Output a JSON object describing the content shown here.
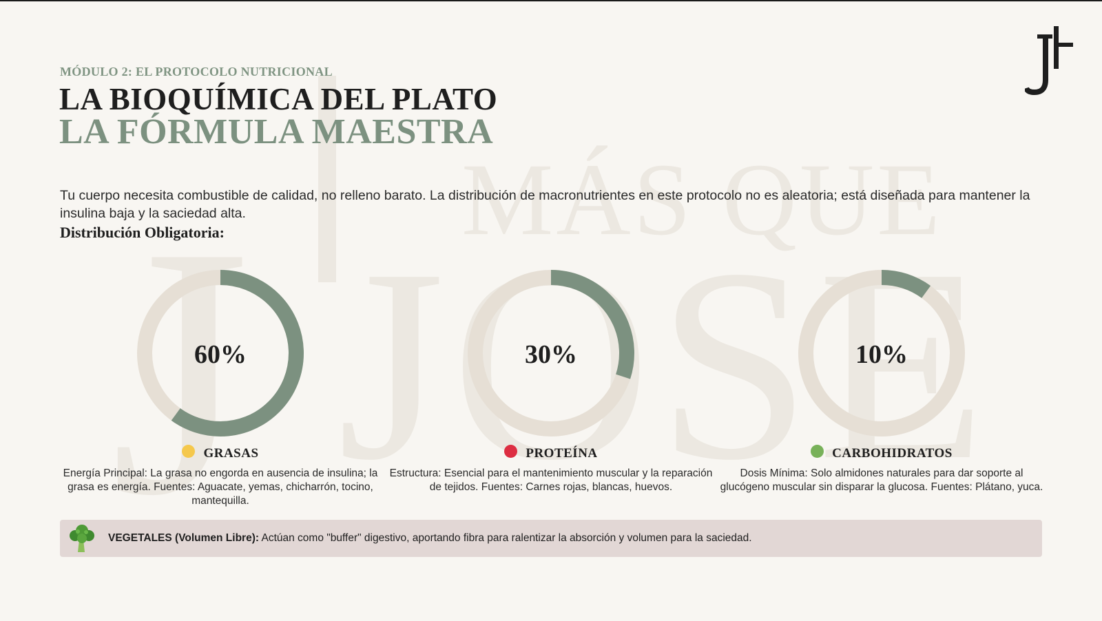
{
  "header": {
    "module": "MÓDULO 2: EL PROTOCOLO NUTRICIONAL",
    "title_line1": "LA BIOQUÍMICA DEL PLATO",
    "title_line2": "LA FÓRMULA MAESTRA"
  },
  "intro": "Tu cuerpo necesita combustible de calidad, no relleno barato. La distribución de macronutrientes en este protocolo no es aleatoria; está diseñada para mantener la insulina baja y la saciedad alta.",
  "distribution_label": "Distribución Obligatoria:",
  "macros": [
    {
      "name": "GRASAS",
      "percent_label": "60%",
      "fraction": 0.6,
      "dot_color": "#f5c84c",
      "description": "Energía Principal: La grasa no engorda en ausencia de insulina; la grasa es energía. Fuentes: Aguacate, yemas, chicharrón, tocino, mantequilla."
    },
    {
      "name": "PROTEÍNA",
      "percent_label": "30%",
      "fraction": 0.3,
      "dot_color": "#dd2e42",
      "description": "Estructura: Esencial para el mantenimiento muscular y la reparación de tejidos. Fuentes: Carnes rojas, blancas, huevos."
    },
    {
      "name": "CARBOHIDRATOS",
      "percent_label": "10%",
      "fraction": 0.1,
      "dot_color": "#78b159",
      "description": "Dosis Mínima: Solo almidones naturales para dar soporte al glucógeno muscular sin disparar la glucosa. Fuentes: Plátano, yuca."
    }
  ],
  "vegetables": {
    "icon": "broccoli-icon",
    "label": "VEGETALES (Volumen Libre):",
    "text": "Actúan como \"buffer\" digestivo, aportando fibra para ralentizar la absorción y volumen para la saciedad."
  },
  "watermark": {
    "line1": "MÁS QUE",
    "line2": "JOSE"
  },
  "colors": {
    "accent": "#7c9180",
    "ring_track": "#e6dfd5",
    "background": "#f8f6f2",
    "veg_bg": "#e2d7d5"
  }
}
